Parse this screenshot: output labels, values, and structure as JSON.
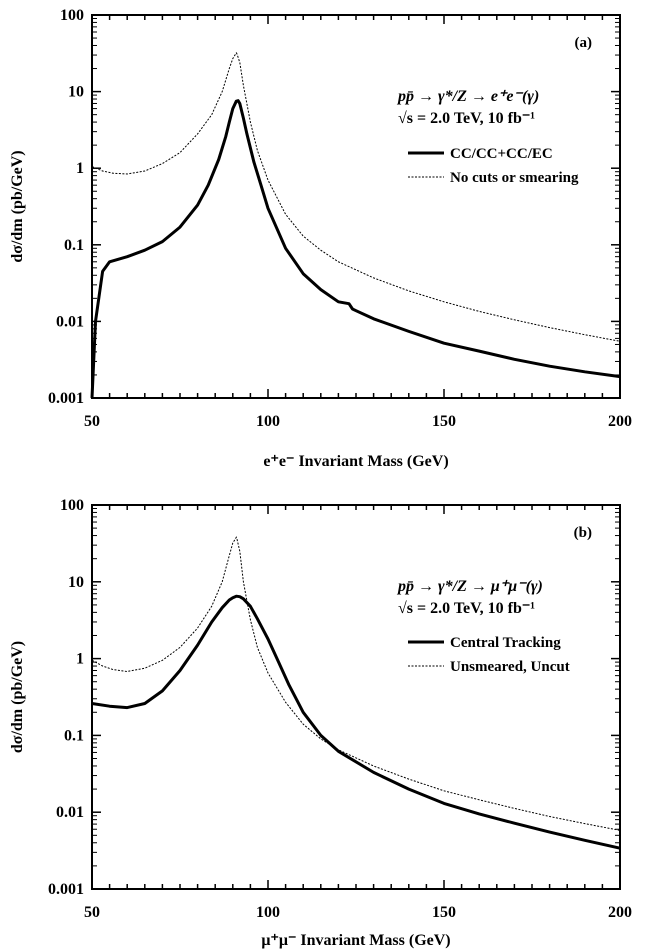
{
  "chart_data": [
    {
      "type": "line",
      "panel_tag": "(a)",
      "xlabel": "e⁺e⁻ Invariant Mass (GeV)",
      "ylabel": "dσ/dm (pb/GeV)",
      "x_scale": "linear",
      "y_scale": "log",
      "xlim": [
        50,
        200
      ],
      "ylim": [
        0.001,
        100
      ],
      "x_ticks": [
        50,
        100,
        150,
        200
      ],
      "x_tick_labels": [
        "50",
        "100",
        "150",
        "200"
      ],
      "y_ticks": [
        0.001,
        0.01,
        0.1,
        1,
        10,
        100
      ],
      "y_tick_labels": [
        "0.001",
        "0.01",
        "0.1",
        "1",
        "10",
        "100"
      ],
      "grid": false,
      "legend_position": "top-right",
      "annotation": {
        "process": "pp̄ → γ*/Z → e⁺e⁻(γ)",
        "conditions": "√s = 2.0 TeV, 10 fb⁻¹"
      },
      "series": [
        {
          "name": "CC/CC+CC/EC",
          "style": "solid-thick",
          "x": [
            50,
            51,
            53,
            55,
            60,
            65,
            70,
            75,
            80,
            83,
            86,
            88,
            89,
            90,
            91,
            91.5,
            92,
            93,
            94,
            96,
            98,
            100,
            105,
            110,
            115,
            120,
            123,
            124,
            125,
            130,
            140,
            150,
            160,
            170,
            180,
            190,
            200
          ],
          "values": [
            0.001,
            0.01,
            0.045,
            0.06,
            0.07,
            0.085,
            0.11,
            0.17,
            0.33,
            0.6,
            1.3,
            2.6,
            4.0,
            6.0,
            7.5,
            7.6,
            7.0,
            4.5,
            2.8,
            1.2,
            0.6,
            0.3,
            0.09,
            0.042,
            0.026,
            0.018,
            0.017,
            0.0145,
            0.0138,
            0.0108,
            0.0074,
            0.0052,
            0.0041,
            0.0032,
            0.0026,
            0.0022,
            0.0019
          ]
        },
        {
          "name": "No cuts or smearing",
          "style": "dashed-thin",
          "x": [
            50,
            53,
            56,
            60,
            65,
            70,
            75,
            80,
            84,
            87,
            89,
            90,
            91,
            91.2,
            92,
            93,
            95,
            97,
            100,
            105,
            110,
            115,
            120,
            130,
            140,
            150,
            160,
            170,
            180,
            190,
            200
          ],
          "values": [
            1.05,
            0.92,
            0.86,
            0.84,
            0.92,
            1.15,
            1.6,
            2.8,
            5.0,
            10.0,
            20.0,
            27.0,
            32.0,
            31.0,
            24.0,
            12.0,
            4.0,
            1.7,
            0.7,
            0.25,
            0.13,
            0.085,
            0.06,
            0.037,
            0.025,
            0.018,
            0.0135,
            0.0105,
            0.0083,
            0.0067,
            0.0055
          ]
        }
      ]
    },
    {
      "type": "line",
      "panel_tag": "(b)",
      "xlabel": "μ⁺μ⁻ Invariant Mass (GeV)",
      "ylabel": "dσ/dm (pb/GeV)",
      "x_scale": "linear",
      "y_scale": "log",
      "xlim": [
        50,
        200
      ],
      "ylim": [
        0.001,
        100
      ],
      "x_ticks": [
        50,
        100,
        150,
        200
      ],
      "x_tick_labels": [
        "50",
        "100",
        "150",
        "200"
      ],
      "y_ticks": [
        0.001,
        0.01,
        0.1,
        1,
        10,
        100
      ],
      "y_tick_labels": [
        "0.001",
        "0.01",
        "0.1",
        "1",
        "10",
        "100"
      ],
      "grid": false,
      "legend_position": "top-right",
      "annotation": {
        "process": "pp̄ → γ*/Z → μ⁺μ⁻(γ)",
        "conditions": "√s = 2.0 TeV, 10 fb⁻¹"
      },
      "series": [
        {
          "name": "Central Tracking",
          "style": "solid-thick",
          "x": [
            50,
            55,
            60,
            65,
            70,
            75,
            80,
            84,
            87,
            89,
            90,
            91,
            92,
            93,
            95,
            97,
            100,
            103,
            106,
            108,
            110,
            115,
            120,
            130,
            140,
            150,
            160,
            170,
            180,
            190,
            200
          ],
          "values": [
            0.26,
            0.24,
            0.23,
            0.26,
            0.38,
            0.7,
            1.5,
            3.0,
            4.6,
            5.8,
            6.2,
            6.5,
            6.4,
            6.0,
            4.8,
            3.3,
            1.8,
            0.9,
            0.45,
            0.3,
            0.2,
            0.1,
            0.062,
            0.033,
            0.02,
            0.013,
            0.0095,
            0.0072,
            0.0055,
            0.0043,
            0.0034
          ]
        },
        {
          "name": "Unsmeared, Uncut",
          "style": "dashed-thin",
          "x": [
            50,
            53,
            56,
            60,
            65,
            70,
            75,
            80,
            84,
            87,
            89,
            90,
            91,
            91.2,
            92,
            93,
            95,
            97,
            100,
            105,
            110,
            115,
            120,
            130,
            140,
            150,
            160,
            170,
            180,
            190,
            200
          ],
          "values": [
            0.95,
            0.8,
            0.72,
            0.68,
            0.75,
            0.95,
            1.4,
            2.5,
            4.8,
            10.0,
            22.0,
            32.0,
            38.0,
            36.0,
            25.0,
            10.0,
            3.2,
            1.4,
            0.65,
            0.27,
            0.14,
            0.09,
            0.065,
            0.04,
            0.027,
            0.019,
            0.0145,
            0.0112,
            0.0088,
            0.0071,
            0.0058
          ]
        }
      ]
    }
  ]
}
